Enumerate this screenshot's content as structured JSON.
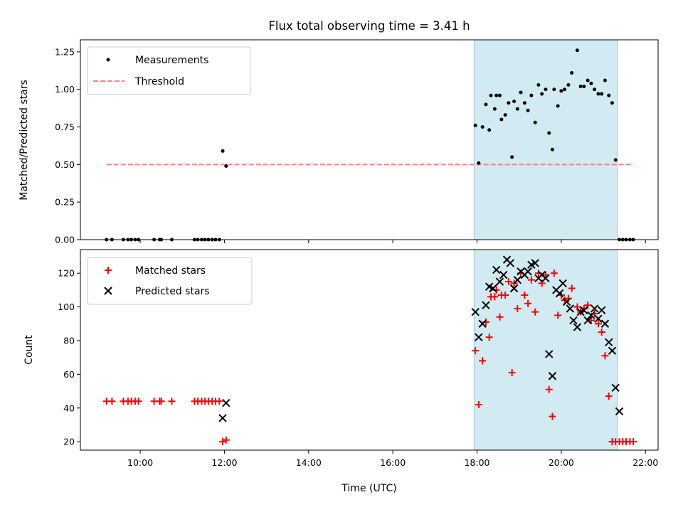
{
  "chart_data": [
    {
      "type": "scatter",
      "title": "Flux total observing time = 3.41 h",
      "ylabel": "Matched/Predicted stars",
      "xlim": [
        8.58,
        22.3
      ],
      "ylim": [
        0.0,
        1.33
      ],
      "yticks": [
        "0.00",
        "0.25",
        "0.50",
        "0.75",
        "1.00",
        "1.25"
      ],
      "shaded_interval": {
        "x": [
          17.93,
          21.33
        ],
        "color": "#add8e6"
      },
      "legend_location": "upper-left",
      "series": [
        {
          "name": "Measurements",
          "marker": "dot",
          "color": "#000000",
          "x": [
            9.2,
            9.33,
            9.6,
            9.71,
            9.79,
            9.88,
            9.96,
            10.33,
            10.46,
            10.5,
            10.75,
            11.29,
            11.37,
            11.46,
            11.54,
            11.62,
            11.71,
            11.79,
            11.88,
            11.96,
            12.04,
            17.96,
            18.04,
            18.13,
            18.21,
            18.29,
            18.33,
            18.42,
            18.46,
            18.54,
            18.58,
            18.67,
            18.75,
            18.83,
            18.88,
            18.96,
            19.04,
            19.13,
            19.21,
            19.29,
            19.38,
            19.46,
            19.54,
            19.63,
            19.71,
            19.79,
            19.83,
            19.92,
            20.0,
            20.08,
            20.17,
            20.25,
            20.38,
            20.46,
            20.54,
            20.63,
            20.71,
            20.79,
            20.88,
            20.96,
            21.04,
            21.13,
            21.21,
            21.29,
            21.38,
            21.46,
            21.54,
            21.63,
            21.71
          ],
          "y": [
            0.0,
            0.0,
            0.0,
            0.0,
            0.0,
            0.0,
            0.0,
            0.0,
            0.0,
            0.0,
            0.0,
            0.0,
            0.0,
            0.0,
            0.0,
            0.0,
            0.0,
            0.0,
            0.0,
            0.59,
            0.49,
            0.76,
            0.51,
            0.75,
            0.9,
            0.73,
            0.96,
            0.87,
            0.96,
            0.96,
            0.8,
            0.83,
            0.91,
            0.55,
            0.92,
            0.87,
            0.98,
            0.91,
            0.86,
            0.96,
            0.78,
            1.03,
            0.97,
            1.0,
            0.71,
            0.6,
            1.0,
            0.89,
            0.99,
            1.0,
            1.03,
            1.11,
            1.26,
            1.02,
            1.02,
            1.06,
            1.04,
            1.0,
            0.97,
            0.97,
            1.06,
            0.96,
            0.91,
            0.53,
            0.0,
            0.0,
            0.0,
            0.0,
            0.0
          ]
        },
        {
          "name": "Threshold",
          "marker": "dashed-line",
          "color": "#ff7f7f",
          "x": [
            9.2,
            21.71
          ],
          "y": [
            0.5,
            0.5
          ]
        }
      ]
    },
    {
      "type": "scatter",
      "xlabel": "Time (UTC)",
      "ylabel": "Count",
      "xlim": [
        8.58,
        22.3
      ],
      "ylim": [
        15,
        134
      ],
      "xticks": [
        "10:00",
        "12:00",
        "14:00",
        "16:00",
        "18:00",
        "20:00",
        "22:00"
      ],
      "yticks": [
        "20",
        "40",
        "60",
        "80",
        "100",
        "120"
      ],
      "shaded_interval": {
        "x": [
          17.93,
          21.33
        ],
        "color": "#add8e6"
      },
      "legend_location": "upper-left",
      "series": [
        {
          "name": "Matched stars",
          "marker": "plus",
          "color": "#ff0000",
          "x": [
            9.2,
            9.33,
            9.6,
            9.71,
            9.79,
            9.88,
            9.96,
            10.33,
            10.46,
            10.5,
            10.75,
            11.29,
            11.37,
            11.46,
            11.54,
            11.62,
            11.71,
            11.79,
            11.88,
            11.96,
            12.04,
            17.96,
            18.04,
            18.13,
            18.21,
            18.29,
            18.33,
            18.42,
            18.46,
            18.54,
            18.58,
            18.67,
            18.75,
            18.83,
            18.88,
            18.96,
            19.04,
            19.13,
            19.21,
            19.29,
            19.38,
            19.46,
            19.54,
            19.63,
            19.71,
            19.79,
            19.83,
            19.92,
            20.0,
            20.08,
            20.17,
            20.25,
            20.38,
            20.46,
            20.54,
            20.63,
            20.71,
            20.79,
            20.88,
            20.96,
            21.04,
            21.13,
            21.21,
            21.29,
            21.38,
            21.46,
            21.54,
            21.63,
            21.71
          ],
          "y": [
            44,
            44,
            44,
            44,
            44,
            44,
            44,
            44,
            44,
            44,
            44,
            44,
            44,
            44,
            44,
            44,
            44,
            44,
            44,
            20,
            21,
            74,
            42,
            68,
            91,
            82,
            106,
            106,
            110,
            94,
            107,
            107,
            115,
            61,
            114,
            99,
            120,
            107,
            102,
            116,
            97,
            120,
            114,
            119,
            51,
            35,
            120,
            95,
            107,
            104,
            105,
            111,
            100,
            97,
            99,
            101,
            92,
            96,
            90,
            85,
            71,
            47,
            20,
            20,
            20,
            20,
            20,
            20,
            20
          ]
        },
        {
          "name": "Predicted stars",
          "marker": "x",
          "color": "#000000",
          "x": [
            11.96,
            12.04,
            17.96,
            18.04,
            18.13,
            18.21,
            18.29,
            18.38,
            18.46,
            18.54,
            18.63,
            18.71,
            18.79,
            18.88,
            18.96,
            19.04,
            19.13,
            19.21,
            19.29,
            19.38,
            19.46,
            19.54,
            19.63,
            19.71,
            19.79,
            19.88,
            19.96,
            20.04,
            20.13,
            20.21,
            20.29,
            20.38,
            20.46,
            20.54,
            20.63,
            20.71,
            20.79,
            20.88,
            20.96,
            21.04,
            21.13,
            21.21,
            21.29,
            21.38
          ],
          "y": [
            34,
            43,
            97,
            82,
            90,
            101,
            112,
            111,
            122,
            115,
            119,
            128,
            126,
            111,
            116,
            121,
            119,
            121,
            125,
            126,
            117,
            119,
            117,
            72,
            59,
            110,
            108,
            114,
            103,
            99,
            92,
            88,
            97,
            98,
            92,
            95,
            99,
            93,
            98,
            90,
            79,
            74,
            52,
            38
          ]
        }
      ]
    }
  ]
}
